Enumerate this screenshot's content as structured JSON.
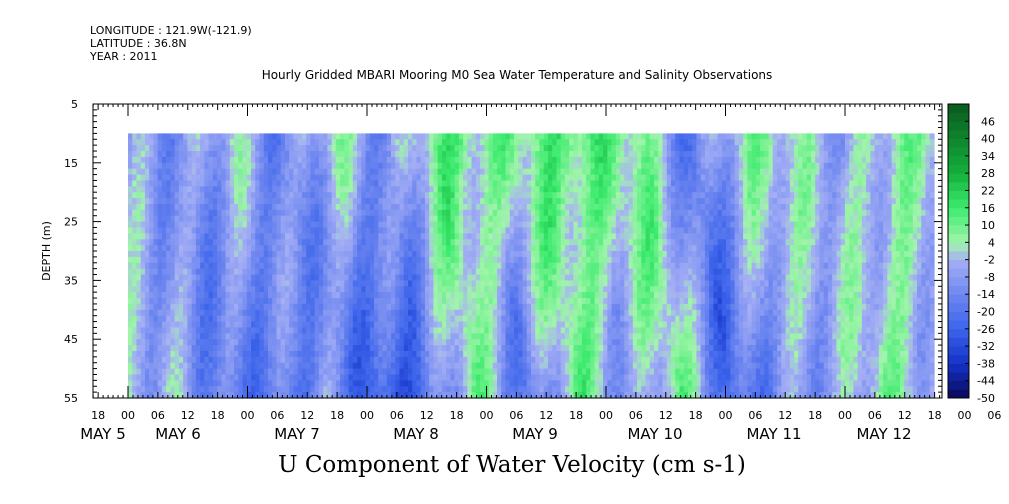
{
  "header": {
    "longitude": "LONGITUDE : 121.9W(-121.9)",
    "latitude": "LATITUDE : 36.8N",
    "year": "YEAR : 2011"
  },
  "chart_data": {
    "type": "heatmap",
    "title": "Hourly Gridded MBARI Mooring M0 Sea Water Temperature and Salinity Observations",
    "xlabel": "U Component of Water Velocity (cm s-1)",
    "ylabel": "DEPTH (m)",
    "ylim": [
      5,
      55
    ],
    "y_reversed": true,
    "y_ticks": [
      5,
      15,
      25,
      35,
      45,
      55
    ],
    "x_hour_ticks": [
      "18",
      "00",
      "06",
      "12",
      "18",
      "00",
      "06",
      "12",
      "18",
      "00",
      "06",
      "12",
      "18",
      "00",
      "06",
      "12",
      "18",
      "00",
      "06",
      "12",
      "18",
      "00",
      "06",
      "12",
      "18",
      "00",
      "06",
      "12",
      "18",
      "00",
      "06",
      "12"
    ],
    "x_day_labels": [
      "MAY  5",
      "MAY  6",
      "MAY  7",
      "MAY  8",
      "MAY  9",
      "MAY 10",
      "MAY 11",
      "MAY 12"
    ],
    "data_start": "May 5 00:00",
    "data_end": "May 12 ~21:00",
    "data_depth_top": 10,
    "colorbar": {
      "labels": [
        "46",
        "40",
        "34",
        "28",
        "22",
        "16",
        "10",
        "4",
        "-2",
        "-8",
        "-14",
        "-20",
        "-26",
        "-32",
        "-38",
        "-44",
        "-50"
      ],
      "min": -50,
      "max": 52,
      "step": 3
    },
    "series_note": "Alternating positive (green) and negative (blue) U velocity bands roughly every 12 hours",
    "hourly_pattern": [
      {
        "time_h": 0,
        "surface": -6,
        "bottom": -4
      },
      {
        "time_h": 12,
        "surface": -12,
        "bottom": -18
      },
      {
        "time_h": 24,
        "surface": 2,
        "bottom": -20
      },
      {
        "time_h": 36,
        "surface": -18,
        "bottom": -10
      },
      {
        "time_h": 48,
        "surface": 6,
        "bottom": -30
      },
      {
        "time_h": 60,
        "surface": -14,
        "bottom": -22
      },
      {
        "time_h": 72,
        "surface": 12,
        "bottom": 10
      },
      {
        "time_h": 84,
        "surface": 8,
        "bottom": -24
      },
      {
        "time_h": 96,
        "surface": 10,
        "bottom": 12
      },
      {
        "time_h": 108,
        "surface": 14,
        "bottom": -14
      },
      {
        "time_h": 120,
        "surface": 8,
        "bottom": 10
      },
      {
        "time_h": 132,
        "surface": -20,
        "bottom": -26
      },
      {
        "time_h": 144,
        "surface": 6,
        "bottom": -10
      },
      {
        "time_h": 156,
        "surface": 4,
        "bottom": -8
      },
      {
        "time_h": 168,
        "surface": -8,
        "bottom": 8
      },
      {
        "time_h": 180,
        "surface": 6,
        "bottom": -6
      }
    ]
  }
}
